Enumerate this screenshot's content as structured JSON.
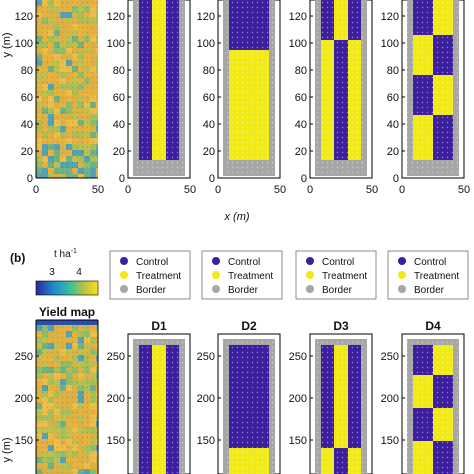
{
  "colors": {
    "control": "#3c1f9e",
    "treatment": "#f1ea16",
    "border": "#a6a6a6",
    "yield_low": "#3a9fc8",
    "yield_mid": "#9fc25a",
    "yield_high": "#f0b03a"
  },
  "panel_a": {
    "xlabel": "x (m)",
    "ylabel": "y (m)",
    "y_ticks": [
      "0",
      "20",
      "40",
      "60",
      "80",
      "100",
      "120"
    ],
    "x_ticks": [
      "0",
      "50"
    ]
  },
  "panel_b": {
    "label": "(b)",
    "colorbar": {
      "unit_base": "t ha",
      "unit_exp": "-1",
      "tick_low": "3",
      "tick_high": "4"
    },
    "legend": [
      "Control",
      "Treatment",
      "Border"
    ],
    "titles": [
      "Yield map",
      "D1",
      "D2",
      "D3",
      "D4"
    ],
    "ylabel": "y (m)",
    "y_ticks": [
      "150",
      "200",
      "250"
    ]
  },
  "chart_data": [
    {
      "type": "heatmap",
      "panel": "a-yield-map",
      "description_values": {
        "x_range": [
          0,
          50
        ],
        "y_range": [
          0,
          135
        ]
      },
      "xlabel": "x (m)",
      "ylabel": "y (m)",
      "x_ticks": [
        0,
        50
      ],
      "y_ticks": [
        0,
        20,
        40,
        60,
        80,
        100,
        120
      ]
    },
    {
      "type": "heatmap",
      "panel": "a-designs",
      "x_ticks": [
        0,
        50
      ],
      "y_ticks": [
        0,
        20,
        40,
        60,
        80,
        100,
        120
      ],
      "designs": [
        {
          "name": "D1",
          "layout": "vertical strips control-treatment-control"
        },
        {
          "name": "D2",
          "layout": "treatment bottom, control top"
        },
        {
          "name": "D3",
          "layout": "alternating blocks"
        },
        {
          "name": "D4",
          "layout": "checkerboard"
        }
      ]
    },
    {
      "type": "heatmap",
      "panel": "b",
      "y_ticks": [
        150,
        200,
        250
      ],
      "legend": [
        "Control",
        "Treatment",
        "Border"
      ]
    }
  ]
}
